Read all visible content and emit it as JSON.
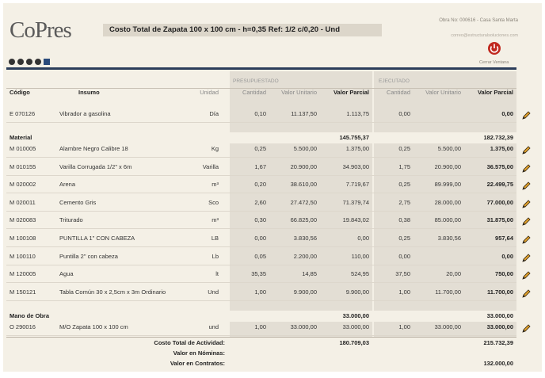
{
  "header": {
    "logo": "CoPres",
    "title": "Costo Total de Zapata 100 x 100 cm - h=0,35  Ref: 1/2 c/0,20 - Und",
    "project": "Obra No: 000616 - Casa Santa Marta",
    "email": "correo@estructuralsoluciones.com",
    "close": "Cerrar Ventana"
  },
  "table": {
    "groups": {
      "budget": "PRESUPUESTADO",
      "executed": "EJECUTADO"
    },
    "columns": {
      "code": "Código",
      "name": "Insumo",
      "unit": "Unidad",
      "p_qty": "Cantidad",
      "p_unit": "Valor Unitario",
      "p_total": "Valor Parcial",
      "e_qty": "Cantidad",
      "e_unit": "Valor Unitario",
      "e_total": "Valor Parcial"
    },
    "sections": [
      {
        "rows": [
          {
            "code": "E  070126",
            "name": "Vibrador a gasolina",
            "unit": "Día",
            "p_qty": "0,10",
            "p_unit": "11.137,50",
            "p_total": "1.113,75",
            "e_qty": "0,00",
            "e_total": "0,00"
          }
        ]
      },
      {
        "title": "Material",
        "p_total": "145.755,37",
        "e_total": "182.732,39",
        "rows": [
          {
            "code": "M  010005",
            "name": "Alambre Negro Calibre 18",
            "unit": "Kg",
            "p_qty": "0,25",
            "p_unit": "5.500,00",
            "p_total": "1.375,00",
            "e_qty": "0,25",
            "e_unit": "5.500,00",
            "e_total": "1.375,00"
          },
          {
            "code": "M  010155",
            "name": "Varilla Corrugada 1/2\" x 6m",
            "unit": "Varilla",
            "p_qty": "1,67",
            "p_unit": "20.900,00",
            "p_total": "34.903,00",
            "e_qty": "1,75",
            "e_unit": "20.900,00",
            "e_total": "36.575,00"
          },
          {
            "code": "M  020002",
            "name": "Arena",
            "unit": "m³",
            "p_qty": "0,20",
            "p_unit": "38.610,00",
            "p_total": "7.719,67",
            "e_qty": "0,25",
            "e_unit": "89.999,00",
            "e_total": "22.499,75"
          },
          {
            "code": "M  020011",
            "name": "Cemento Gris",
            "unit": "Sco",
            "p_qty": "2,60",
            "p_unit": "27.472,50",
            "p_total": "71.379,74",
            "e_qty": "2,75",
            "e_unit": "28.000,00",
            "e_total": "77.000,00"
          },
          {
            "code": "M  020083",
            "name": "Triturado",
            "unit": "m³",
            "p_qty": "0,30",
            "p_unit": "66.825,00",
            "p_total": "19.843,02",
            "e_qty": "0,38",
            "e_unit": "85.000,00",
            "e_total": "31.875,00"
          },
          {
            "code": "M  100108",
            "name": "PUNTILLA 1\" CON CABEZA",
            "unit": "LB",
            "p_qty": "0,00",
            "p_unit": "3.830,56",
            "p_total": "0,00",
            "e_qty": "0,25",
            "e_unit": "3.830,56",
            "e_total": "957,64"
          },
          {
            "code": "M  100110",
            "name": "Puntilla 2\" con cabeza",
            "unit": "Lb",
            "p_qty": "0,05",
            "p_unit": "2.200,00",
            "p_total": "110,00",
            "e_qty": "0,00",
            "e_total": "0,00"
          },
          {
            "code": "M  120005",
            "name": "Agua",
            "unit": "lt",
            "p_qty": "35,35",
            "p_unit": "14,85",
            "p_total": "524,95",
            "e_qty": "37,50",
            "e_unit": "20,00",
            "e_total": "750,00"
          },
          {
            "code": "M  150121",
            "name": "Tabla Común 30 x 2,5cm x 3m Ordinario",
            "unit": "Und",
            "p_qty": "1,00",
            "p_unit": "9.900,00",
            "p_total": "9.900,00",
            "e_qty": "1,00",
            "e_unit": "11.700,00",
            "e_total": "11.700,00"
          }
        ]
      },
      {
        "title": "Mano de Obra",
        "p_total": "33.000,00",
        "e_total": "33.000,00",
        "rows": [
          {
            "code": "O  290016",
            "name": "M/O Zapata 100 x 100 cm",
            "unit": "und",
            "p_qty": "1,00",
            "p_unit": "33.000,00",
            "p_total": "33.000,00",
            "e_qty": "1,00",
            "e_unit": "33.000,00",
            "e_total": "33.000,00"
          }
        ]
      }
    ],
    "totals": [
      {
        "label": "Costo Total de Actividad:",
        "p_total": "180.709,03",
        "e_total": "215.732,39"
      },
      {
        "label": "Valor en Nóminas:"
      },
      {
        "label": "Valor en Contratos:",
        "e_total": "132.000,00"
      }
    ]
  }
}
